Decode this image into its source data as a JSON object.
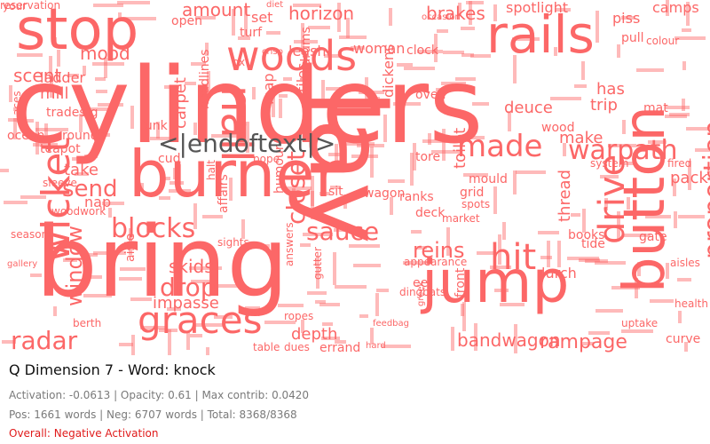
{
  "colors": {
    "word": "#fc6767",
    "special": "#555555",
    "overall": "#e01b1b"
  },
  "cloud": {
    "words": [
      {
        "text": "cylinders",
        "size": 118
      },
      {
        "text": "bring",
        "size": 110
      },
      {
        "text": "burner",
        "size": 72
      },
      {
        "text": "lay",
        "size": 118
      },
      {
        "text": "jump",
        "size": 66
      },
      {
        "text": "button",
        "size": 64
      },
      {
        "text": "stop",
        "size": 64
      },
      {
        "text": "rails",
        "size": 58
      },
      {
        "text": "woods",
        "size": 46
      },
      {
        "text": "nail",
        "size": 48
      },
      {
        "text": "wicket",
        "size": 44
      },
      {
        "text": "graces",
        "size": 42
      },
      {
        "text": "drive",
        "size": 40
      },
      {
        "text": "hit",
        "size": 40
      },
      {
        "text": "proportion",
        "size": 30
      },
      {
        "text": "made",
        "size": 34
      },
      {
        "text": "warpath",
        "size": 30
      },
      {
        "text": "blocks",
        "size": 30
      },
      {
        "text": "sauce",
        "size": 28
      },
      {
        "text": "closet",
        "size": 28
      },
      {
        "text": "drop",
        "size": 28
      },
      {
        "text": "radar",
        "size": 28
      },
      {
        "text": "send",
        "size": 26
      },
      {
        "text": "window",
        "size": 24
      },
      {
        "text": "reins",
        "size": 24
      },
      {
        "text": "rampage",
        "size": 22
      },
      {
        "text": "bandwagon",
        "size": 20
      },
      {
        "text": "amount",
        "size": 20
      },
      {
        "text": "horizon",
        "size": 20
      },
      {
        "text": "brakes",
        "size": 20
      },
      {
        "text": "scent",
        "size": 20
      },
      {
        "text": "mood",
        "size": 20
      },
      {
        "text": "carpet",
        "size": 18
      },
      {
        "text": "skids",
        "size": 20
      },
      {
        "text": "impasse",
        "size": 18
      },
      {
        "text": "depth",
        "size": 18
      },
      {
        "text": "toilet",
        "size": 18
      },
      {
        "text": "deuce",
        "size": 18
      },
      {
        "text": "trip",
        "size": 18
      },
      {
        "text": "has",
        "size": 18
      },
      {
        "text": "thread",
        "size": 18
      },
      {
        "text": "pack",
        "size": 18
      },
      {
        "text": "lurch",
        "size": 16
      },
      {
        "text": "spotlight",
        "size": 16
      },
      {
        "text": "camps",
        "size": 16
      },
      {
        "text": "piss",
        "size": 16
      },
      {
        "text": "pull",
        "size": 14
      },
      {
        "text": "mill",
        "size": 18
      },
      {
        "text": "ladder",
        "size": 16
      },
      {
        "text": "trades",
        "size": 14
      },
      {
        "text": "rig",
        "size": 14
      },
      {
        "text": "ocean",
        "size": 14
      },
      {
        "text": "rounds",
        "size": 14
      },
      {
        "text": "teapot",
        "size": 14
      },
      {
        "text": "take",
        "size": 18
      },
      {
        "text": "sleeve",
        "size": 12
      },
      {
        "text": "nap",
        "size": 16
      },
      {
        "text": "woodwork",
        "size": 12
      },
      {
        "text": "seasons",
        "size": 12
      },
      {
        "text": "set",
        "size": 16
      },
      {
        "text": "leash",
        "size": 16
      },
      {
        "text": "woman",
        "size": 16
      },
      {
        "text": "clock",
        "size": 14
      },
      {
        "text": "tiles",
        "size": 16
      },
      {
        "text": "doldrums",
        "size": 14
      },
      {
        "text": "dickens",
        "size": 16
      },
      {
        "text": "oven",
        "size": 14
      },
      {
        "text": "map",
        "size": 16
      },
      {
        "text": "headlines",
        "size": 14
      },
      {
        "text": "funk",
        "size": 14
      },
      {
        "text": "cud",
        "size": 14
      },
      {
        "text": "affairs",
        "size": 14
      },
      {
        "text": "humour",
        "size": 14
      },
      {
        "text": "wagon",
        "size": 14
      },
      {
        "text": "sit",
        "size": 14
      },
      {
        "text": "tore",
        "size": 14
      },
      {
        "text": "pope",
        "size": 12
      },
      {
        "text": "answers",
        "size": 12
      },
      {
        "text": "halt",
        "size": 12
      },
      {
        "text": "gutter",
        "size": 12
      },
      {
        "text": "dingbats",
        "size": 12
      },
      {
        "text": "front",
        "size": 14
      },
      {
        "text": "appearance",
        "size": 12
      },
      {
        "text": "eel",
        "size": 14
      },
      {
        "text": "aisles",
        "size": 12
      },
      {
        "text": "tide",
        "size": 14
      },
      {
        "text": "books",
        "size": 14
      },
      {
        "text": "uptake",
        "size": 12
      },
      {
        "text": "curve",
        "size": 14
      },
      {
        "text": "fired",
        "size": 12
      },
      {
        "text": "mat",
        "size": 14
      },
      {
        "text": "system",
        "size": 12
      },
      {
        "text": "wood",
        "size": 14
      },
      {
        "text": "make",
        "size": 18
      },
      {
        "text": "mould",
        "size": 14
      },
      {
        "text": "ranks",
        "size": 14
      },
      {
        "text": "grid",
        "size": 14
      },
      {
        "text": "market",
        "size": 12
      },
      {
        "text": "deck",
        "size": 14
      },
      {
        "text": "spots",
        "size": 12
      },
      {
        "text": "sights",
        "size": 12
      },
      {
        "text": "berth",
        "size": 12
      },
      {
        "text": "table",
        "size": 12
      },
      {
        "text": "errand",
        "size": 14
      },
      {
        "text": "aisle",
        "size": 14
      },
      {
        "text": "ropes",
        "size": 12
      },
      {
        "text": "feedbag",
        "size": 10
      },
      {
        "text": "dues",
        "size": 12
      },
      {
        "text": "hard",
        "size": 10
      },
      {
        "text": "occasion",
        "size": 10
      },
      {
        "text": "open",
        "size": 14
      },
      {
        "text": "turf",
        "size": 14
      },
      {
        "text": "gate",
        "size": 14
      },
      {
        "text": "health",
        "size": 12
      },
      {
        "text": "gallery",
        "size": 10
      },
      {
        "text": "greek",
        "size": 10
      },
      {
        "text": "crisp",
        "size": 10
      },
      {
        "text": "ox",
        "size": 12
      },
      {
        "text": "diet",
        "size": 10
      },
      {
        "text": "colour",
        "size": 12
      },
      {
        "text": "your",
        "size": 12
      },
      {
        "text": "aces",
        "size": 12
      },
      {
        "text": "reservation",
        "size": 12
      }
    ]
  },
  "special_token": {
    "text": "<|endoftext|>",
    "size": 28
  },
  "info": {
    "title": "Q Dimension 7 - Word: knock",
    "stats": "Activation: -0.0613 | Opacity: 0.61 | Max contrib: 0.0420",
    "counts": "Pos: 1661 words | Neg: 6707 words | Total: 8368/8368",
    "overall": "Overall: Negative Activation"
  }
}
